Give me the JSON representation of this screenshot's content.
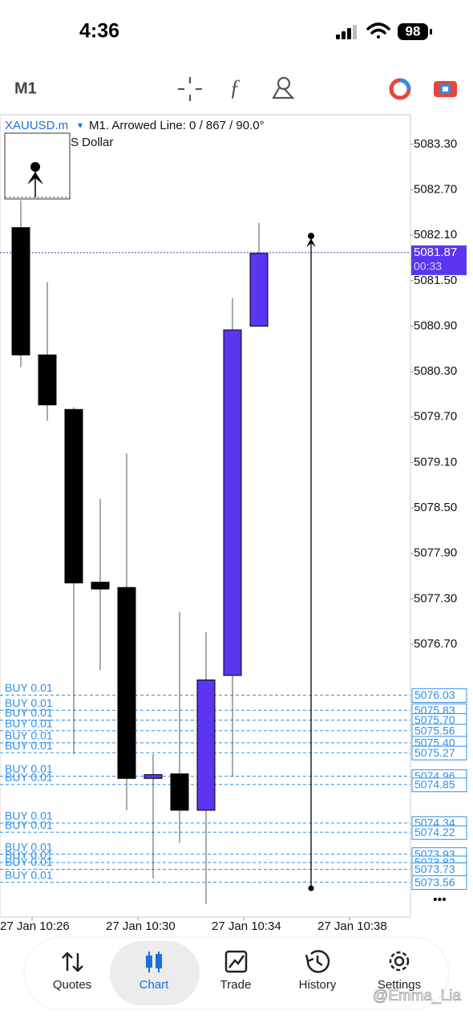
{
  "status_bar": {
    "time": "4:36",
    "battery": "98"
  },
  "toolbar": {
    "timeframe": "M1"
  },
  "chart_data": {
    "type": "candlestick",
    "symbol": "XAUUSD.m",
    "symbol_caret": "▾",
    "info": "M1. Arrowed Line: 0 / 867 / 90.0°",
    "description": "S Dollar",
    "open": [
      5082.2,
      5080.52,
      5079.8,
      5077.52,
      5077.45,
      5074.93,
      5074.99,
      5074.51,
      5076.29,
      5080.9
    ],
    "high": [
      5082.56,
      5081.48,
      5079.83,
      5078.62,
      5079.22,
      5075.25,
      5077.13,
      5076.86,
      5081.27,
      5082.26
    ],
    "low": [
      5080.36,
      5079.65,
      5075.25,
      5076.36,
      5074.51,
      5073.61,
      5074.08,
      5073.27,
      5074.95,
      5080.9
    ],
    "close": [
      5080.52,
      5079.86,
      5077.51,
      5077.43,
      5074.93,
      5074.98,
      5074.51,
      5076.23,
      5080.85,
      5081.86
    ],
    "up_color": "#5b35ef",
    "down_color": "#000000",
    "xtick_labels": [
      "27 Jan 10:26",
      "27 Jan 10:30",
      "27 Jan 10:34",
      "27 Jan 10:38"
    ],
    "ylim": [
      5073.1,
      5083.69
    ],
    "yticks": [
      {
        "value": 5083.3,
        "label": "5083.30"
      },
      {
        "value": 5082.7,
        "label": "5082.70"
      },
      {
        "value": 5082.1,
        "label": "5082.10"
      },
      {
        "value": 5081.5,
        "label": "5081.50"
      },
      {
        "value": 5080.9,
        "label": "5080.90"
      },
      {
        "value": 5080.3,
        "label": "5080.30"
      },
      {
        "value": 5079.7,
        "label": "5079.70"
      },
      {
        "value": 5079.1,
        "label": "5079.10"
      },
      {
        "value": 5078.5,
        "label": "5078.50"
      },
      {
        "value": 5077.9,
        "label": "5077.90"
      },
      {
        "value": 5077.3,
        "label": "5077.30"
      },
      {
        "value": 5076.7,
        "label": "5076.70"
      }
    ],
    "current_price": {
      "value": 5081.87,
      "countdown": "00:33",
      "color": "#5b35ef"
    },
    "arrow_line": {
      "from": 5073.48,
      "to": 5082.09
    },
    "orders": {
      "labels": [
        "BUY 0.01",
        "BUY 0.01",
        "BUY 0.01",
        "BUY 0.01",
        "BUY 0.01",
        "BUY 0.01",
        "BUY 0.01",
        "BUY 0.01",
        "BUY 0.01",
        "BUY 0.01",
        "BUY 0.01",
        "BUY 0.01",
        "BUY 0.01",
        "BUY 0.01"
      ],
      "values": [
        5076.03,
        5075.83,
        5075.7,
        5075.56,
        5075.4,
        5075.27,
        5074.96,
        5074.85,
        5074.34,
        5074.22,
        5073.93,
        5073.82,
        5073.73,
        5073.56
      ],
      "value_labels": [
        "5076.03",
        "5075.83",
        "5075.70",
        "5075.56",
        "5075.40",
        "5075.27",
        "5074.96",
        "5074.85",
        "5074.34",
        "5074.22",
        "5073.93",
        "5073.82",
        "5073.73",
        "5073.56"
      ],
      "color": "#2f8fe6"
    },
    "more": "•••"
  },
  "tab_bar": {
    "tabs": [
      "Quotes",
      "Chart",
      "Trade",
      "History",
      "Settings"
    ],
    "selected": "Chart"
  },
  "watermark": "@Emma_Lia"
}
